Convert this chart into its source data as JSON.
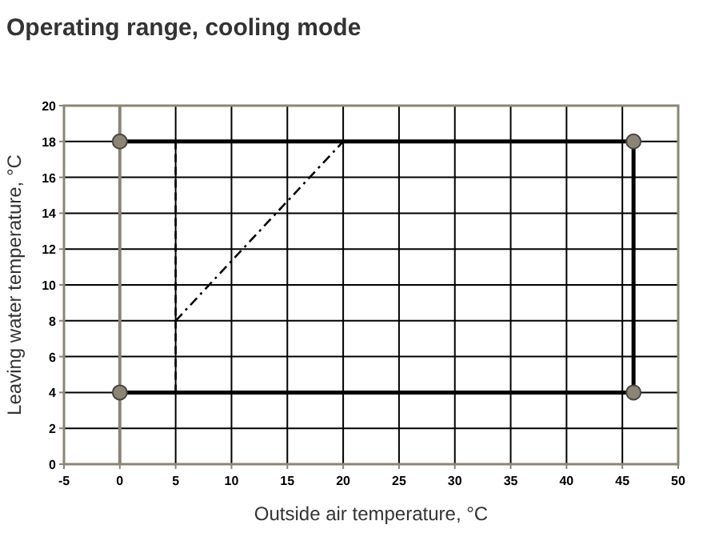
{
  "chart_data": {
    "type": "line",
    "title": "Operating range, cooling mode",
    "xlabel": "Outside air temperature, °C",
    "ylabel": "Leaving water temperature, °C",
    "xlim": [
      -5,
      50
    ],
    "xticks": [
      -5,
      0,
      5,
      10,
      15,
      20,
      25,
      30,
      35,
      40,
      45,
      50
    ],
    "ylim": [
      0,
      20
    ],
    "yticks": [
      0,
      2,
      4,
      6,
      8,
      10,
      12,
      14,
      16,
      18,
      20
    ],
    "grid": true,
    "series": [
      {
        "color": "#000000",
        "x": [
          0,
          46,
          46,
          0
        ],
        "values": [
          18,
          18,
          4,
          4
        ],
        "marker": "circle",
        "line_style": "solid"
      },
      {
        "color": "#000000",
        "x": [
          5,
          5
        ],
        "values": [
          4,
          18
        ],
        "marker": "none",
        "line_style": "dashed"
      },
      {
        "color": "#000000",
        "x": [
          5,
          20
        ],
        "values": [
          8,
          18
        ],
        "marker": "none",
        "line_style": "dotted"
      }
    ]
  }
}
